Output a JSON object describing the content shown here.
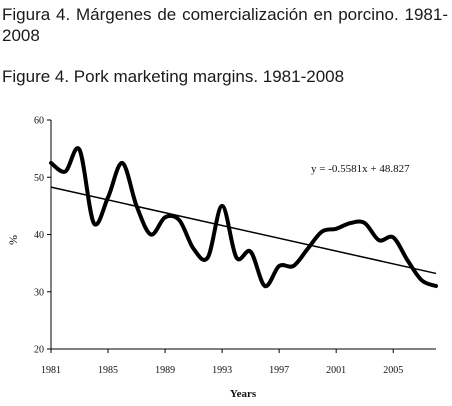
{
  "captions": {
    "spanish": "Figura 4. Márgenes de comercialización en porcino. 1981-2008",
    "english": "Figure 4. Pork marketing margins. 1981-2008"
  },
  "chart_data": {
    "type": "line",
    "title": "",
    "xlabel": "Years",
    "ylabel": "%",
    "xlim": [
      1981,
      2008
    ],
    "ylim": [
      20,
      60
    ],
    "x_ticks": [
      1981,
      1985,
      1989,
      1993,
      1997,
      2001,
      2005
    ],
    "y_ticks": [
      20,
      30,
      40,
      50,
      60
    ],
    "grid": false,
    "legend": "none",
    "annotation": "y = -0.5581x + 48.827",
    "series": [
      {
        "x": [
          1981,
          1982,
          1983,
          1984,
          1985,
          1986,
          1987,
          1988,
          1989,
          1990,
          1991,
          1992,
          1993,
          1994,
          1995,
          1996,
          1997,
          1998,
          1999,
          2000,
          2001,
          2002,
          2003,
          2004,
          2005,
          2006,
          2007,
          2008
        ],
        "values": [
          52.5,
          51.0,
          54.8,
          42.0,
          46.5,
          52.5,
          45.0,
          40.0,
          43.0,
          42.5,
          37.5,
          36.0,
          45.0,
          36.0,
          37.0,
          31.0,
          34.5,
          34.5,
          37.5,
          40.5,
          41.0,
          42.0,
          42.0,
          39.0,
          39.5,
          35.5,
          32.0,
          31.0
        ]
      }
    ],
    "trendline": {
      "slope": -0.5581,
      "intercept": 48.827
    },
    "colors": {
      "series": "#000000",
      "trend": "#000000",
      "axis": "#000000"
    }
  }
}
